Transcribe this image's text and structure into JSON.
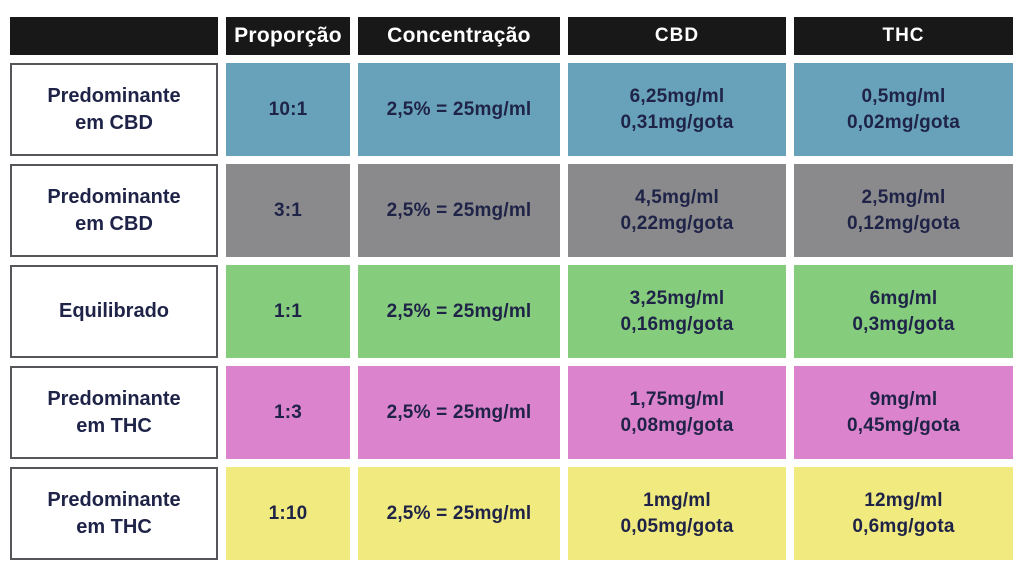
{
  "header": {
    "col0": "",
    "col1": "Proporção",
    "col2": "Concentração",
    "col3": "CBD",
    "col4": "THC"
  },
  "rows": [
    {
      "label_line1": "Predominante",
      "label_line2": "em CBD",
      "ratio": "10:1",
      "concentration": "2,5% = 25mg/ml",
      "cbd_line1": "6,25mg/ml",
      "cbd_line2": "0,31mg/gota",
      "thc_line1": "0,5mg/ml",
      "thc_line2": "0,02mg/gota",
      "color": "#68a2ba"
    },
    {
      "label_line1": "Predominante",
      "label_line2": "em CBD",
      "ratio": "3:1",
      "concentration": "2,5% = 25mg/ml",
      "cbd_line1": "4,5mg/ml",
      "cbd_line2": "0,22mg/gota",
      "thc_line1": "2,5mg/ml",
      "thc_line2": "0,12mg/gota",
      "color": "#8a8a8c"
    },
    {
      "label_line1": "Equilibrado",
      "label_line2": "",
      "ratio": "1:1",
      "concentration": "2,5% = 25mg/ml",
      "cbd_line1": "3,25mg/ml",
      "cbd_line2": "0,16mg/gota",
      "thc_line1": "6mg/ml",
      "thc_line2": "0,3mg/gota",
      "color": "#85cc7d"
    },
    {
      "label_line1": "Predominante",
      "label_line2": "em THC",
      "ratio": "1:3",
      "concentration": "2,5% = 25mg/ml",
      "cbd_line1": "1,75mg/ml",
      "cbd_line2": "0,08mg/gota",
      "thc_line1": "9mg/ml",
      "thc_line2": "0,45mg/gota",
      "color": "#dc83cd"
    },
    {
      "label_line1": "Predominante",
      "label_line2": "em THC",
      "ratio": "1:10",
      "concentration": "2,5% = 25mg/ml",
      "cbd_line1": "1mg/ml",
      "cbd_line2": "0,05mg/gota",
      "thc_line1": "12mg/ml",
      "thc_line2": "0,6mg/gota",
      "color": "#f0ea7f"
    }
  ],
  "colors": {
    "header_bg": "#181818",
    "header_text": "#ffffff",
    "body_text": "#1e2347",
    "label_border": "#55555a",
    "row_blue": "#68a2ba",
    "row_gray": "#8a8a8c",
    "row_green": "#85cc7d",
    "row_pink": "#dc83cd",
    "row_yellow": "#f0ea7f"
  },
  "chart_data": {
    "type": "table",
    "columns": [
      "",
      "Proporção",
      "Concentração",
      "CBD",
      "THC"
    ],
    "rows": [
      [
        "Predominante em CBD",
        "10:1",
        "2,5% = 25mg/ml",
        "6,25mg/ml 0,31mg/gota",
        "0,5mg/ml 0,02mg/gota"
      ],
      [
        "Predominante em CBD",
        "3:1",
        "2,5% = 25mg/ml",
        "4,5mg/ml 0,22mg/gota",
        "2,5mg/ml 0,12mg/gota"
      ],
      [
        "Equilibrado",
        "1:1",
        "2,5% = 25mg/ml",
        "3,25mg/ml 0,16mg/gota",
        "6mg/ml 0,3mg/gota"
      ],
      [
        "Predominante em THC",
        "1:3",
        "2,5% = 25mg/ml",
        "1,75mg/ml 0,08mg/gota",
        "9mg/ml 0,45mg/gota"
      ],
      [
        "Predominante em THC",
        "1:10",
        "2,5% = 25mg/ml",
        "1mg/ml 0,05mg/gota",
        "12mg/ml 0,6mg/gota"
      ]
    ],
    "row_colors": [
      "#68a2ba",
      "#8a8a8c",
      "#85cc7d",
      "#dc83cd",
      "#f0ea7f"
    ]
  }
}
